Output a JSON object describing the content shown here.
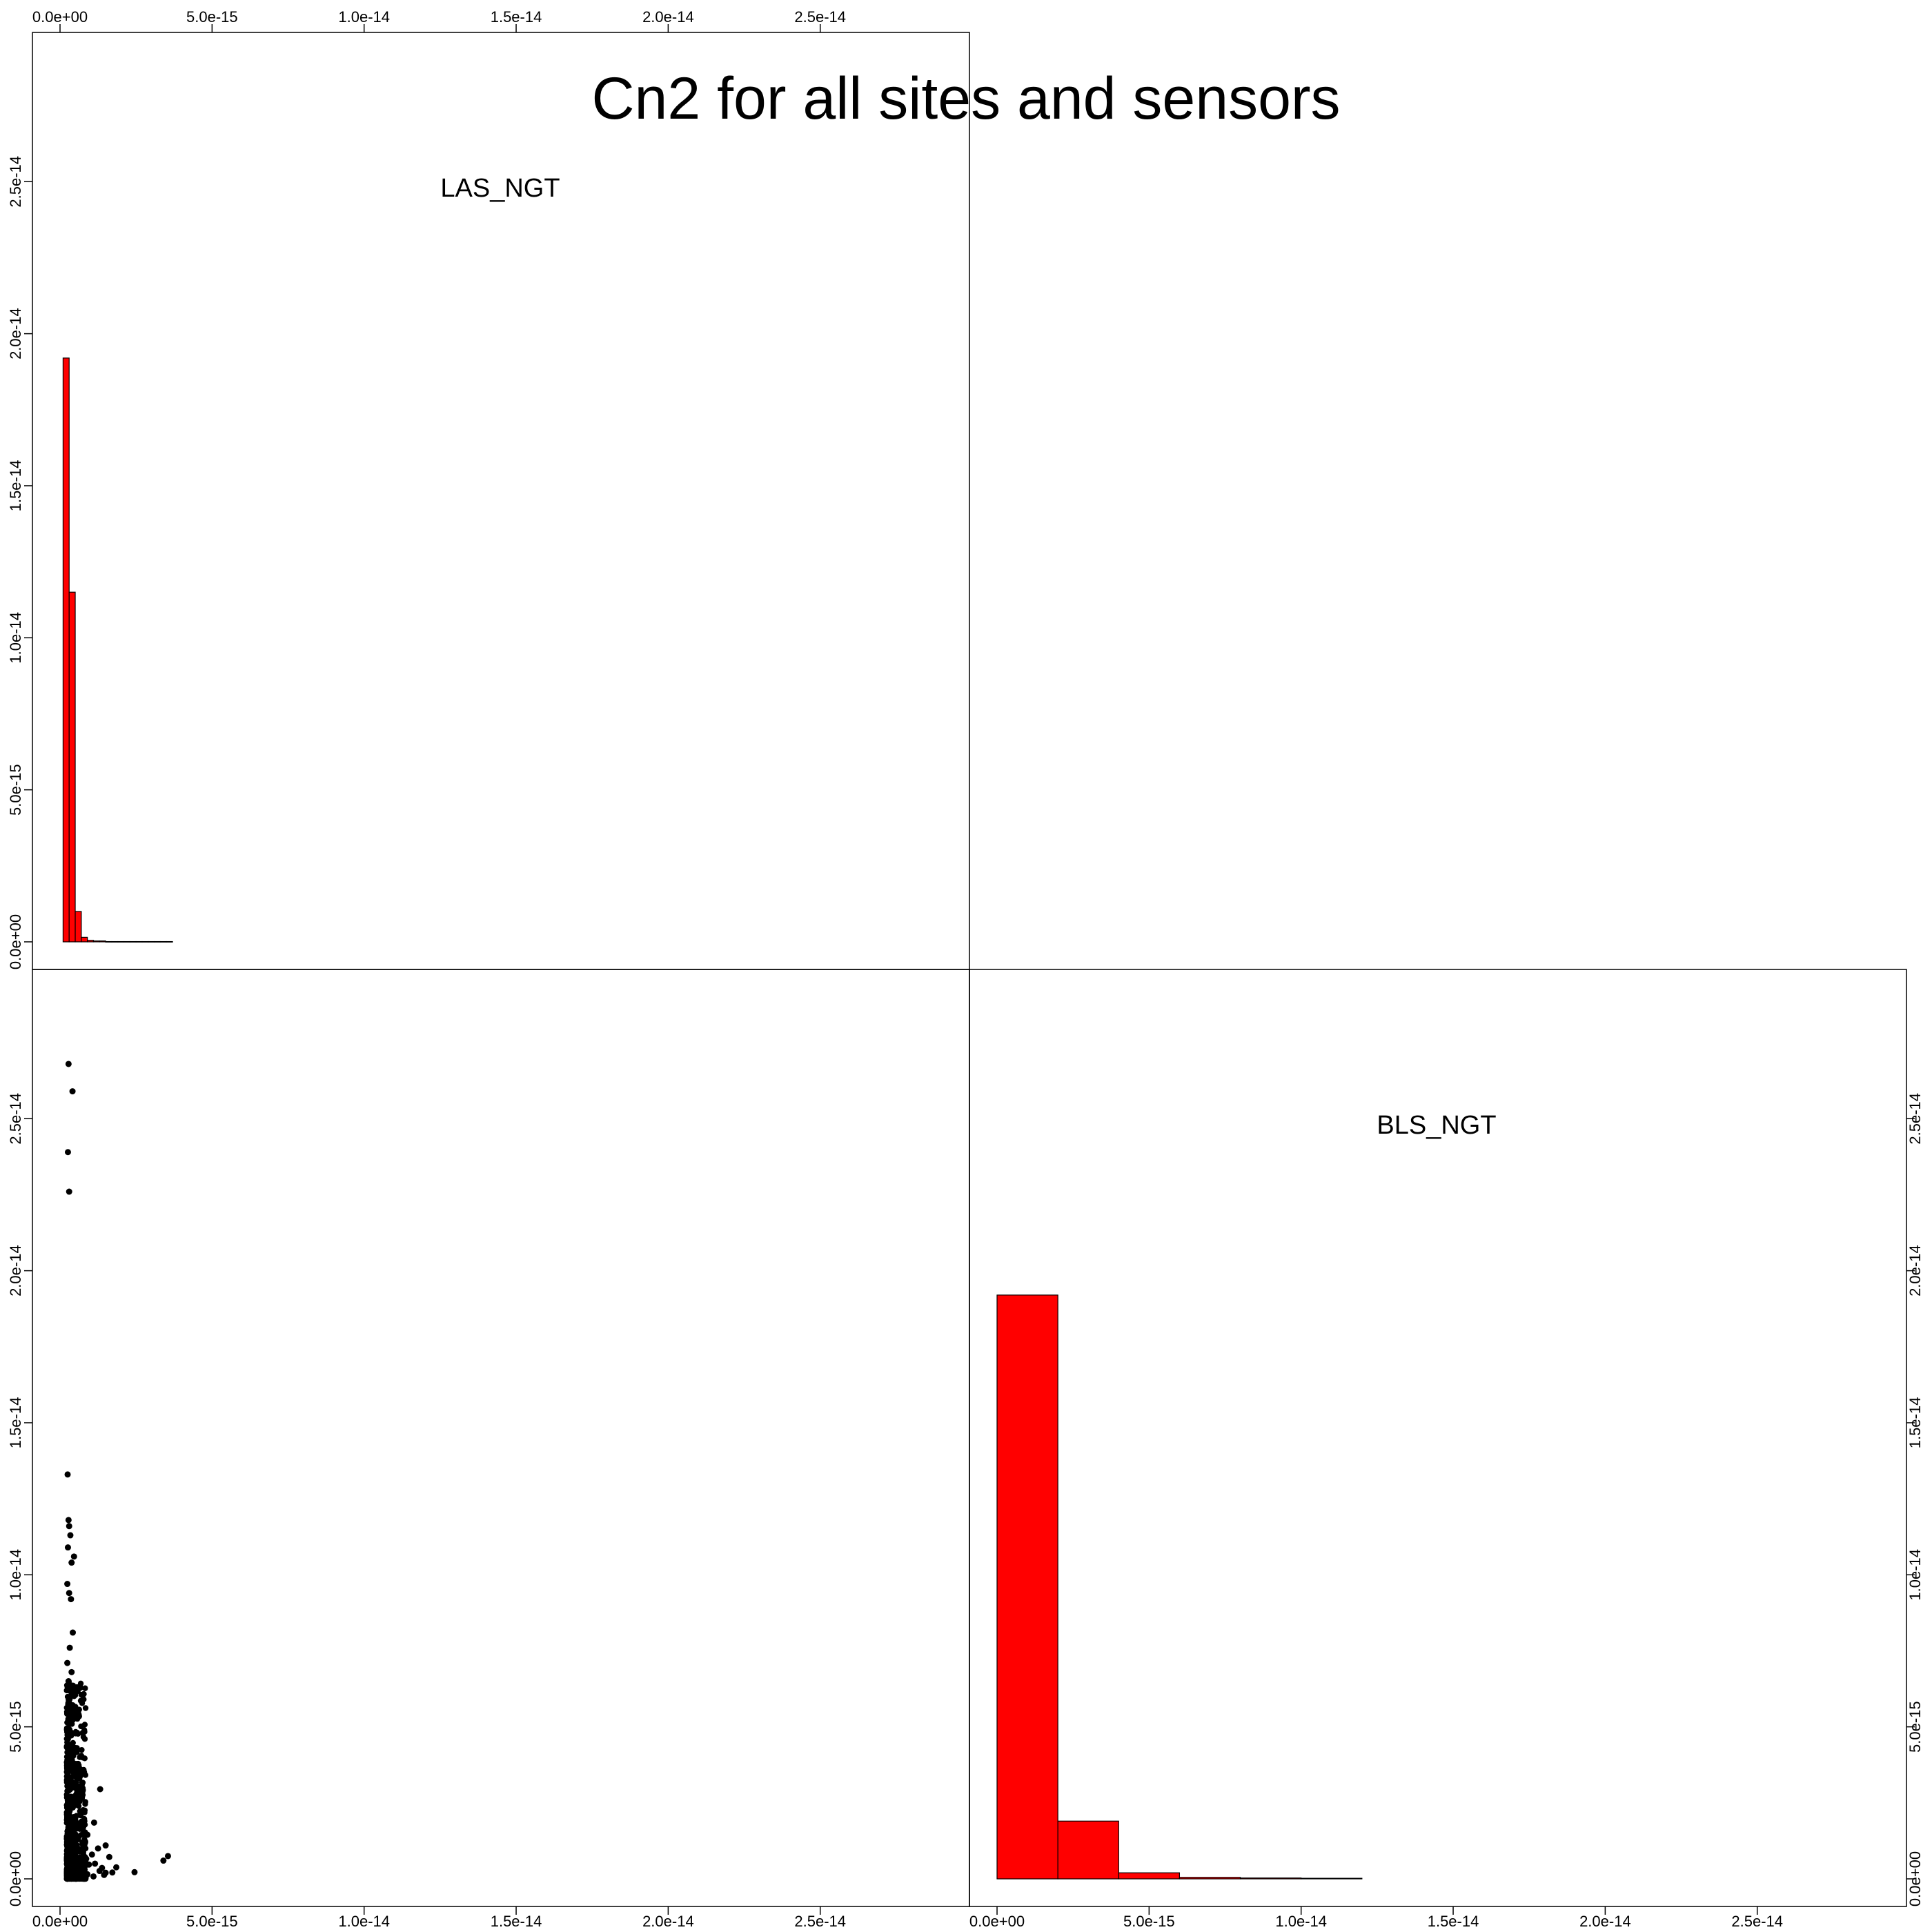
{
  "chart_data": {
    "type": "scatter-matrix",
    "title": "Cn2 for all sites and sensors",
    "variables": [
      "LAS_NGT",
      "BLS_NGT"
    ],
    "axis_range": [
      0,
      2.9e-14
    ],
    "tick_values": [
      0,
      5e-15,
      1e-14,
      1.5e-14,
      2e-14,
      2.5e-14
    ],
    "tick_labels": [
      "0.0e+00",
      "5.0e-15",
      "1.0e-14",
      "1.5e-14",
      "2.0e-14",
      "2.5e-14"
    ],
    "fill_color": "#ff0000",
    "point_color": "#000000",
    "histograms": [
      {
        "variable": "LAS_NGT",
        "bin_edges": [
          1e-16,
          3e-16,
          5e-16,
          7e-16,
          9e-16,
          1.1e-15,
          1.3e-15,
          1.5e-15,
          1.7e-15,
          1.9e-15,
          2.1e-15,
          2.3e-15,
          2.5e-15,
          2.7e-15,
          2.9e-15,
          3.1e-15,
          3.3e-15,
          3.5e-15,
          3.7e-15
        ],
        "heights": [
          1.92e-14,
          1.15e-14,
          1e-15,
          1.5e-16,
          5e-17,
          3e-17,
          3e-17,
          1e-17,
          1e-17,
          1e-17,
          1e-17,
          1e-17,
          1e-17,
          1e-17,
          1e-17,
          1e-17,
          1e-17,
          1e-17
        ]
      },
      {
        "variable": "BLS_NGT",
        "bin_edges": [
          0,
          2e-15,
          4e-15,
          6e-15,
          8e-15,
          1e-14,
          1.2e-14
        ],
        "heights": [
          1.92e-14,
          1.9e-15,
          2e-16,
          5e-17,
          3e-17,
          2e-17
        ]
      }
    ],
    "scatter": {
      "x_variable": "LAS_NGT",
      "y_variable": "BLS_NGT",
      "points": [
        [
          2.8e-16,
          2.68e-14
        ],
        [
          4.1e-16,
          2.59e-14
        ],
        [
          2.6e-16,
          2.39e-14
        ],
        [
          3e-16,
          2.26e-14
        ],
        [
          2.5e-16,
          1.33e-14
        ],
        [
          2.8e-16,
          1.18e-14
        ],
        [
          3e-16,
          1.16e-14
        ],
        [
          3.4e-16,
          1.13e-14
        ],
        [
          2.6e-16,
          1.09e-14
        ],
        [
          4.6e-16,
          1.06e-14
        ],
        [
          3.8e-16,
          1.04e-14
        ],
        [
          2.4e-16,
          9.7e-15
        ],
        [
          3e-16,
          9.4e-15
        ],
        [
          3.6e-16,
          9.2e-15
        ],
        [
          4.2e-16,
          8.1e-15
        ],
        [
          3.2e-16,
          7.6e-15
        ],
        [
          2.4e-16,
          7.1e-15
        ],
        [
          3.8e-16,
          6.8e-15
        ],
        [
          2.8e-16,
          6.5e-15
        ],
        [
          4.4e-16,
          6.2e-15
        ],
        [
          3e-16,
          5.9e-15
        ],
        [
          2.5e-16,
          5.6e-15
        ],
        [
          4.8e-16,
          5.4e-15
        ],
        [
          3.4e-16,
          5.1e-15
        ],
        [
          7.5e-16,
          4.8e-15
        ],
        [
          2.6e-16,
          4.6e-15
        ],
        [
          3.9e-16,
          4.4e-15
        ],
        [
          5.2e-16,
          4.2e-15
        ],
        [
          3e-16,
          4e-15
        ],
        [
          4.5e-16,
          3.8e-15
        ],
        [
          2.4e-16,
          3.6e-15
        ],
        [
          6e-16,
          3.5e-15
        ],
        [
          3.3e-16,
          3.3e-15
        ],
        [
          4.8e-16,
          3.1e-15
        ],
        [
          1.32e-15,
          2.95e-15
        ],
        [
          2.8e-16,
          2.9e-15
        ],
        [
          5.5e-16,
          2.8e-15
        ],
        [
          3.6e-16,
          2.7e-15
        ],
        [
          6.4e-16,
          2.55e-15
        ],
        [
          2.5e-16,
          2.45e-15
        ],
        [
          4.2e-16,
          2.35e-15
        ],
        [
          7e-16,
          2.2e-15
        ],
        [
          3e-16,
          2.1e-15
        ],
        [
          5e-16,
          2e-15
        ],
        [
          8e-16,
          1.9e-15
        ],
        [
          1.12e-15,
          1.85e-15
        ],
        [
          3.4e-16,
          1.8e-15
        ],
        [
          6.2e-16,
          1.7e-15
        ],
        [
          2.6e-16,
          1.6e-15
        ],
        [
          4.6e-16,
          1.5e-15
        ],
        [
          9e-16,
          1.45e-15
        ],
        [
          3.8e-16,
          1.4e-15
        ],
        [
          5.8e-16,
          1.3e-15
        ],
        [
          2.4e-16,
          1.2e-15
        ],
        [
          7.4e-16,
          1.15e-15
        ],
        [
          1.5e-15,
          1.1e-15
        ],
        [
          4e-16,
          1.05e-15
        ],
        [
          1.25e-15,
          1e-15
        ],
        [
          3e-16,
          9.5e-16
        ],
        [
          6.6e-16,
          9e-16
        ],
        [
          2.6e-16,
          8.5e-16
        ],
        [
          1.05e-15,
          8e-16
        ],
        [
          4.4e-16,
          7.6e-16
        ],
        [
          3.55e-15,
          7.5e-16
        ],
        [
          1.62e-15,
          7.2e-16
        ],
        [
          5.4e-16,
          7e-16
        ],
        [
          8.6e-16,
          6.6e-16
        ],
        [
          3.4e-16,
          6.2e-16
        ],
        [
          3.4e-15,
          6e-16
        ],
        [
          2.5e-16,
          5.8e-16
        ],
        [
          7.2e-16,
          5.5e-16
        ],
        [
          4.6e-16,
          5.2e-16
        ],
        [
          1.15e-15,
          5e-16
        ],
        [
          9.5e-16,
          4.7e-16
        ],
        [
          3e-16,
          4.5e-16
        ],
        [
          6e-16,
          4.2e-16
        ],
        [
          1.38e-15,
          3.6e-16
        ],
        [
          1.85e-15,
          3.8e-16
        ],
        [
          2.8e-16,
          3.4e-16
        ],
        [
          5e-16,
          3e-16
        ],
        [
          8e-16,
          2.8e-16
        ],
        [
          1.3e-15,
          2.6e-16
        ],
        [
          3.6e-16,
          2.4e-16
        ],
        [
          2.45e-15,
          2.2e-16
        ],
        [
          1.5e-15,
          2e-16
        ],
        [
          6.8e-16,
          2e-16
        ],
        [
          1.72e-15,
          2.1e-16
        ],
        [
          2.4e-16,
          1.8e-16
        ],
        [
          4.2e-16,
          1.6e-16
        ],
        [
          9e-16,
          1.5e-16
        ],
        [
          1.45e-15,
          1.3e-16
        ],
        [
          3.2e-16,
          1.2e-16
        ],
        [
          5.6e-16,
          1.1e-16
        ],
        [
          7.6e-16,
          1e-16
        ],
        [
          2.6e-16,
          9e-17
        ],
        [
          1.1e-15,
          8e-17
        ],
        [
          4e-16,
          7e-17
        ],
        [
          6.2e-16,
          6e-17
        ],
        [
          3e-16,
          5e-17
        ],
        [
          8.4e-16,
          4e-17
        ]
      ],
      "dense_region": {
        "x": [
          2.2e-16,
          8.5e-16
        ],
        "y": [
          0,
          6.5e-15
        ]
      }
    }
  }
}
